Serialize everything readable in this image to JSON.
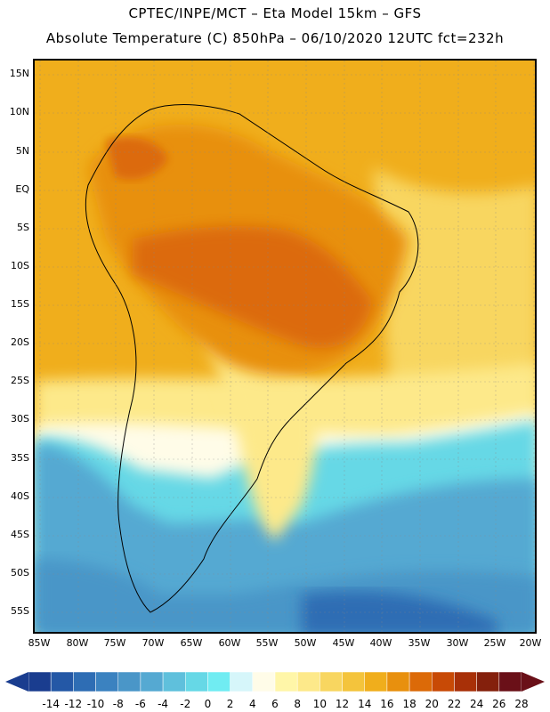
{
  "title_line1": "CPTEC/INPE/MCT –  Eta Model 15km – GFS",
  "title_line2": "Absolute Temperature (C) 850hPa – 06/10/2020 12UTC fct=232h",
  "lat_labels": [
    "15N",
    "10N",
    "5N",
    "EQ",
    "5S",
    "10S",
    "15S",
    "20S",
    "25S",
    "30S",
    "35S",
    "40S",
    "45S",
    "50S",
    "55S"
  ],
  "lon_labels": [
    "85W",
    "80W",
    "75W",
    "70W",
    "65W",
    "60W",
    "55W",
    "50W",
    "45W",
    "40W",
    "35W",
    "30W",
    "25W",
    "20W"
  ],
  "colorbar": {
    "labels": [
      "-14",
      "-12",
      "-10",
      "-8",
      "-6",
      "-4",
      "-2",
      "0",
      "2",
      "4",
      "6",
      "8",
      "10",
      "12",
      "14",
      "16",
      "18",
      "20",
      "22",
      "24",
      "26",
      "28"
    ],
    "colors": [
      "#1a3d8f",
      "#2458a6",
      "#2e6db4",
      "#3b82c0",
      "#4a96c8",
      "#55a9d2",
      "#5fc0dc",
      "#66d8e6",
      "#70ecf2",
      "#d6f6fa",
      "#fffce8",
      "#fff6a8",
      "#fde98a",
      "#f8d660",
      "#f4c43c",
      "#f0ae1c",
      "#e8900e",
      "#dc6a08",
      "#c84a06",
      "#a83008",
      "#84200c",
      "#6a1018"
    ]
  }
}
